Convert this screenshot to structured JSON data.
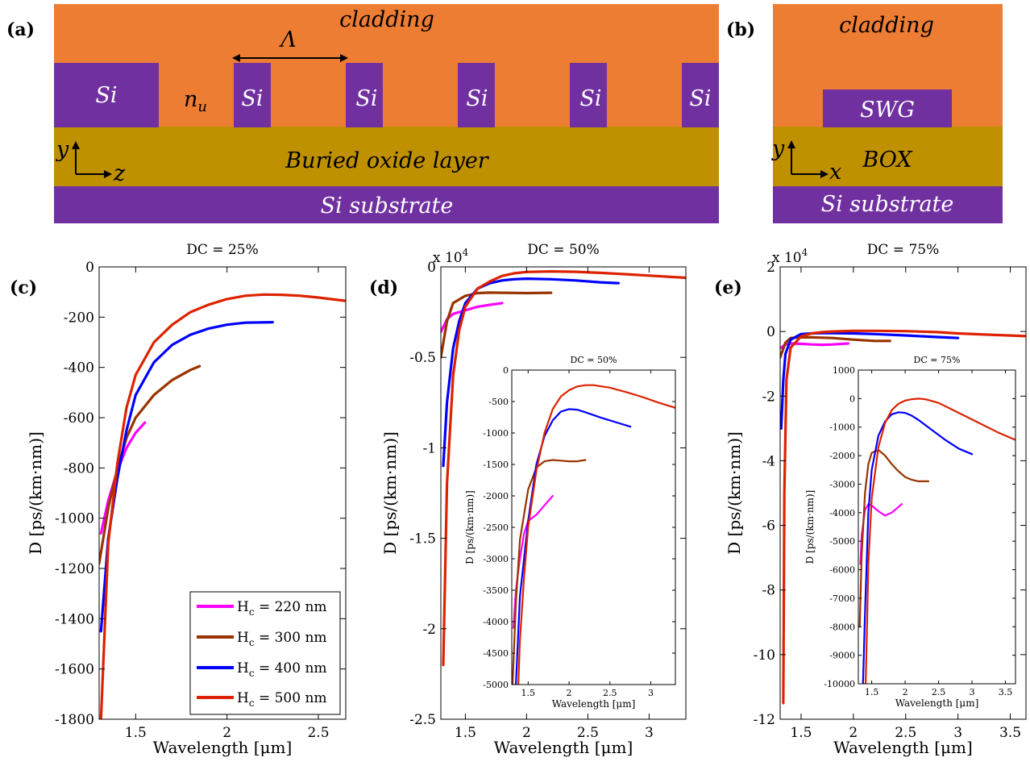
{
  "colors": {
    "cladding": "#ee7d34",
    "si": "#7030a0",
    "box": "#bf9000",
    "h220": "#ff00ff",
    "h300": "#993300",
    "h400": "#0000ff",
    "h500": "#dd2200"
  },
  "schematics": {
    "a": {
      "label": "(a)",
      "cladding": "cladding",
      "period": "Λ",
      "nu_main": "n",
      "nu_sub": "u",
      "si": "Si",
      "box": "Buried oxide layer",
      "substrate": "Si substrate",
      "axis_y": "y",
      "axis_z": "z"
    },
    "b": {
      "label": "(b)",
      "cladding": "cladding",
      "swg": "SWG",
      "box": "BOX",
      "substrate": "Si substrate",
      "axis_y": "y",
      "axis_x": "x"
    }
  },
  "legend": [
    {
      "prefix": "H",
      "sub": "c",
      "rest": " = 220 nm",
      "color": "#ff00ff"
    },
    {
      "prefix": "H",
      "sub": "c",
      "rest": " = 300 nm",
      "color": "#993300"
    },
    {
      "prefix": "H",
      "sub": "c",
      "rest": " = 400 nm",
      "color": "#0000ff"
    },
    {
      "prefix": "H",
      "sub": "c",
      "rest": " = 500 nm",
      "color": "#dd2200"
    }
  ],
  "chart_data": [
    {
      "id": "c",
      "label": "(c)",
      "type": "line",
      "title": "DC = 25%",
      "xlabel": "Wavelength [μm]",
      "ylabel": "D [ps/(km·nm)]",
      "xlim": [
        1.3,
        2.65
      ],
      "ylim": [
        -1800,
        0
      ],
      "xticks": [
        1.5,
        2,
        2.5
      ],
      "xtick_labels": [
        "1.5",
        "2",
        "2.5"
      ],
      "yticks": [
        0,
        -200,
        -400,
        -600,
        -800,
        -1000,
        -1200,
        -1400,
        -1600,
        -1800
      ],
      "ytick_labels": [
        "0",
        "-200",
        "-400",
        "-600",
        "-800",
        "-1000",
        "-1200",
        "-1400",
        "-1600",
        "-1800"
      ],
      "series": [
        {
          "name": "Hc = 220 nm",
          "color": "#ff00ff",
          "x": [
            1.31,
            1.35,
            1.4,
            1.45,
            1.5,
            1.55
          ],
          "y": [
            -1060,
            -930,
            -810,
            -720,
            -660,
            -620
          ]
        },
        {
          "name": "Hc = 300 nm",
          "color": "#993300",
          "x": [
            1.3,
            1.35,
            1.4,
            1.45,
            1.5,
            1.6,
            1.7,
            1.8,
            1.85
          ],
          "y": [
            -1180,
            -960,
            -800,
            -680,
            -600,
            -510,
            -450,
            -410,
            -395
          ]
        },
        {
          "name": "Hc = 400 nm",
          "color": "#0000ff",
          "x": [
            1.31,
            1.35,
            1.4,
            1.45,
            1.5,
            1.6,
            1.7,
            1.8,
            1.9,
            2.0,
            2.1,
            2.25
          ],
          "y": [
            -1450,
            -1080,
            -840,
            -650,
            -510,
            -380,
            -310,
            -270,
            -245,
            -230,
            -222,
            -220
          ]
        },
        {
          "name": "Hc = 500 nm",
          "color": "#dd2200",
          "x": [
            1.31,
            1.35,
            1.4,
            1.45,
            1.5,
            1.6,
            1.7,
            1.8,
            1.9,
            2.0,
            2.1,
            2.2,
            2.3,
            2.4,
            2.5,
            2.65
          ],
          "y": [
            -1800,
            -1100,
            -780,
            -560,
            -430,
            -300,
            -230,
            -180,
            -150,
            -128,
            -115,
            -110,
            -111,
            -115,
            -122,
            -135
          ]
        }
      ]
    },
    {
      "id": "d",
      "label": "(d)",
      "type": "line",
      "title": "DC = 50%",
      "xlabel": "Wavelength [μm]",
      "ylabel": "D [ps/(km·nm)]",
      "exponent_label": "x 10",
      "exponent_power": "4",
      "xlim": [
        1.3,
        3.3
      ],
      "ylim": [
        -2.5,
        0
      ],
      "xticks": [
        1.5,
        2,
        2.5,
        3
      ],
      "xtick_labels": [
        "1.5",
        "2",
        "2.5",
        "3"
      ],
      "yticks": [
        0,
        -0.5,
        -1,
        -1.5,
        -2,
        -2.5
      ],
      "ytick_labels": [
        "0",
        "-0.5",
        "-1",
        "-1.5",
        "-2",
        "-2.5"
      ],
      "series": [
        {
          "name": "Hc = 220 nm",
          "color": "#ff00ff",
          "x": [
            1.3,
            1.35,
            1.4,
            1.5,
            1.6,
            1.7,
            1.8
          ],
          "y": [
            -0.36,
            -0.29,
            -0.26,
            -0.24,
            -0.22,
            -0.21,
            -0.2
          ]
        },
        {
          "name": "Hc = 300 nm",
          "color": "#993300",
          "x": [
            1.3,
            1.35,
            1.4,
            1.5,
            1.6,
            1.7,
            1.8,
            2.0,
            2.2
          ],
          "y": [
            -0.5,
            -0.3,
            -0.2,
            -0.16,
            -0.145,
            -0.142,
            -0.143,
            -0.145,
            -0.143
          ]
        },
        {
          "name": "Hc = 400 nm",
          "color": "#0000ff",
          "x": [
            1.32,
            1.35,
            1.4,
            1.45,
            1.5,
            1.6,
            1.7,
            1.8,
            1.9,
            2.0,
            2.2,
            2.4,
            2.6,
            2.75
          ],
          "y": [
            -1.1,
            -0.75,
            -0.45,
            -0.3,
            -0.2,
            -0.12,
            -0.09,
            -0.075,
            -0.068,
            -0.065,
            -0.068,
            -0.075,
            -0.085,
            -0.09
          ]
        },
        {
          "name": "Hc = 500 nm",
          "color": "#dd2200",
          "x": [
            1.32,
            1.35,
            1.4,
            1.45,
            1.5,
            1.6,
            1.7,
            1.8,
            1.9,
            2.0,
            2.2,
            2.4,
            2.6,
            2.8,
            3.0,
            3.3
          ],
          "y": [
            -2.2,
            -1.2,
            -0.6,
            -0.35,
            -0.22,
            -0.12,
            -0.08,
            -0.05,
            -0.035,
            -0.028,
            -0.025,
            -0.027,
            -0.033,
            -0.04,
            -0.048,
            -0.06
          ]
        }
      ],
      "inset": {
        "title": "DC = 50%",
        "xlabel": "Wavelength [μm]",
        "ylabel": "D [ps/(km·nm)]",
        "xlim": [
          1.3,
          3.3
        ],
        "ylim": [
          -5000,
          0
        ],
        "xticks": [
          1.5,
          2,
          2.5,
          3
        ],
        "xtick_labels": [
          "1.5",
          "2",
          "2.5",
          "3"
        ],
        "yticks": [
          0,
          -500,
          -1000,
          -1500,
          -2000,
          -2500,
          -3000,
          -3500,
          -4000,
          -4500,
          -5000
        ],
        "ytick_labels": [
          "0",
          "-500",
          "-1000",
          "-1500",
          "-2000",
          "-2500",
          "-3000",
          "-3500",
          "-4000",
          "-4500",
          "-5000"
        ],
        "series": [
          {
            "name": "Hc = 220 nm",
            "color": "#ff00ff",
            "x": [
              1.32,
              1.35,
              1.4,
              1.45,
              1.5,
              1.6,
              1.7,
              1.8
            ],
            "y": [
              -4100,
              -3500,
              -3000,
              -2600,
              -2400,
              -2300,
              -2150,
              -2000
            ]
          },
          {
            "name": "Hc = 300 nm",
            "color": "#993300",
            "x": [
              1.31,
              1.35,
              1.4,
              1.5,
              1.6,
              1.7,
              1.8,
              1.9,
              2.0,
              2.1,
              2.2
            ],
            "y": [
              -5000,
              -3700,
              -2700,
              -1900,
              -1550,
              -1450,
              -1430,
              -1440,
              -1450,
              -1450,
              -1430
            ]
          },
          {
            "name": "Hc = 400 nm",
            "color": "#0000ff",
            "x": [
              1.35,
              1.4,
              1.5,
              1.6,
              1.7,
              1.8,
              1.9,
              2.0,
              2.1,
              2.2,
              2.4,
              2.6,
              2.75
            ],
            "y": [
              -5000,
              -3600,
              -2400,
              -1500,
              -1050,
              -800,
              -660,
              -620,
              -630,
              -670,
              -760,
              -840,
              -900
            ]
          },
          {
            "name": "Hc = 500 nm",
            "color": "#dd2200",
            "x": [
              1.38,
              1.4,
              1.45,
              1.5,
              1.6,
              1.7,
              1.8,
              1.9,
              2.0,
              2.1,
              2.2,
              2.3,
              2.5,
              2.7,
              2.9,
              3.1,
              3.3
            ],
            "y": [
              -5000,
              -4300,
              -3300,
              -2500,
              -1600,
              -1000,
              -620,
              -420,
              -320,
              -260,
              -240,
              -240,
              -280,
              -350,
              -430,
              -520,
              -600
            ]
          }
        ]
      }
    },
    {
      "id": "e",
      "label": "(e)",
      "type": "line",
      "title": "DC = 75%",
      "xlabel": "Wavelength [μm]",
      "ylabel": "D [ps/(km·nm)]",
      "exponent_label": "x 10",
      "exponent_power": "4",
      "xlim": [
        1.3,
        3.65
      ],
      "ylim": [
        -12,
        2
      ],
      "xticks": [
        1.5,
        2,
        2.5,
        3,
        3.5
      ],
      "xtick_labels": [
        "1.5",
        "2",
        "2.5",
        "3",
        "3.5"
      ],
      "yticks": [
        2,
        0,
        -2,
        -4,
        -6,
        -8,
        -10,
        -12
      ],
      "ytick_labels": [
        "2",
        "0",
        "-2",
        "-4",
        "-6",
        "-8",
        "-10",
        "-12"
      ],
      "series": [
        {
          "name": "Hc = 220 nm",
          "color": "#ff00ff",
          "x": [
            1.31,
            1.35,
            1.4,
            1.5,
            1.6,
            1.7,
            1.8,
            1.9,
            1.95
          ],
          "y": [
            -0.5,
            -0.4,
            -0.37,
            -0.38,
            -0.4,
            -0.41,
            -0.4,
            -0.38,
            -0.37
          ]
        },
        {
          "name": "Hc = 300 nm",
          "color": "#993300",
          "x": [
            1.3,
            1.35,
            1.4,
            1.5,
            1.6,
            1.8,
            2.0,
            2.2,
            2.35
          ],
          "y": [
            -0.8,
            -0.35,
            -0.2,
            -0.18,
            -0.18,
            -0.2,
            -0.25,
            -0.29,
            -0.29
          ]
        },
        {
          "name": "Hc = 400 nm",
          "color": "#0000ff",
          "x": [
            1.31,
            1.33,
            1.35,
            1.4,
            1.5,
            1.6,
            1.7,
            1.8,
            2.0,
            2.2,
            2.5,
            2.8,
            3.0
          ],
          "y": [
            -3.0,
            -1.5,
            -0.7,
            -0.25,
            -0.08,
            -0.06,
            -0.05,
            -0.05,
            -0.06,
            -0.08,
            -0.12,
            -0.17,
            -0.2
          ]
        },
        {
          "name": "Hc = 500 nm",
          "color": "#dd2200",
          "x": [
            1.33,
            1.34,
            1.36,
            1.4,
            1.5,
            1.6,
            1.7,
            1.8,
            2.0,
            2.2,
            2.5,
            2.8,
            3.0,
            3.3,
            3.65
          ],
          "y": [
            -11.5,
            -5.0,
            -1.5,
            -0.5,
            -0.15,
            -0.06,
            -0.02,
            0.0,
            0.02,
            0.02,
            0.01,
            -0.02,
            -0.06,
            -0.1,
            -0.14
          ]
        }
      ],
      "inset": {
        "title": "DC = 75%",
        "xlabel": "Wavelength [μm]",
        "ylabel": "D [ps/(km·nm)]",
        "xlim": [
          1.3,
          3.65
        ],
        "ylim": [
          -10000,
          1000
        ],
        "xticks": [
          1.5,
          2,
          2.5,
          3,
          3.5
        ],
        "xtick_labels": [
          "1.5",
          "2",
          "2.5",
          "3",
          "3.5"
        ],
        "yticks": [
          1000,
          0,
          -1000,
          -2000,
          -3000,
          -4000,
          -5000,
          -6000,
          -7000,
          -8000,
          -9000,
          -10000
        ],
        "ytick_labels": [
          "1000",
          "0",
          "-1000",
          "-2000",
          "-3000",
          "-4000",
          "-5000",
          "-6000",
          "-7000",
          "-8000",
          "-9000",
          "-10000"
        ],
        "series": [
          {
            "name": "Hc = 220 nm",
            "color": "#ff00ff",
            "x": [
              1.33,
              1.35,
              1.4,
              1.45,
              1.5,
              1.6,
              1.7,
              1.8,
              1.9,
              1.95
            ],
            "y": [
              -5800,
              -4800,
              -3900,
              -3700,
              -3750,
              -3950,
              -4100,
              -4000,
              -3800,
              -3700
            ]
          },
          {
            "name": "Hc = 300 nm",
            "color": "#993300",
            "x": [
              1.32,
              1.35,
              1.4,
              1.45,
              1.5,
              1.6,
              1.7,
              1.8,
              1.9,
              2.0,
              2.1,
              2.2,
              2.3,
              2.35
            ],
            "y": [
              -8000,
              -5500,
              -3300,
              -2300,
              -1900,
              -1800,
              -2000,
              -2300,
              -2550,
              -2750,
              -2850,
              -2900,
              -2900,
              -2900
            ]
          },
          {
            "name": "Hc = 400 nm",
            "color": "#0000ff",
            "x": [
              1.37,
              1.4,
              1.45,
              1.5,
              1.6,
              1.7,
              1.8,
              1.9,
              2.0,
              2.1,
              2.2,
              2.4,
              2.6,
              2.8,
              3.0
            ],
            "y": [
              -10000,
              -7500,
              -4000,
              -2500,
              -1300,
              -800,
              -550,
              -480,
              -500,
              -600,
              -750,
              -1100,
              -1450,
              -1750,
              -1950
            ]
          },
          {
            "name": "Hc = 500 nm",
            "color": "#dd2200",
            "x": [
              1.41,
              1.43,
              1.45,
              1.5,
              1.6,
              1.7,
              1.8,
              1.9,
              2.0,
              2.1,
              2.2,
              2.3,
              2.5,
              2.8,
              3.1,
              3.4,
              3.65
            ],
            "y": [
              -10000,
              -8000,
              -5800,
              -3500,
              -1700,
              -850,
              -400,
              -180,
              -70,
              -20,
              0,
              -20,
              -150,
              -500,
              -850,
              -1200,
              -1450
            ]
          }
        ]
      }
    }
  ]
}
